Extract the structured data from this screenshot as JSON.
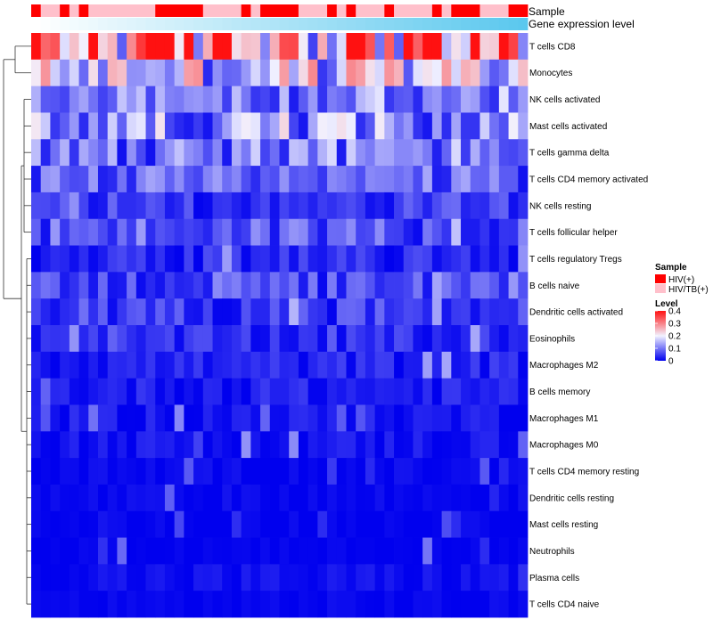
{
  "chart_data": {
    "type": "heatmap",
    "annotations": [
      {
        "name": "Sample",
        "values": [
          "HIV(+)",
          "HIV/TB(+)",
          "HIV/TB(+)",
          "HIV(+)",
          "HIV/TB(+)",
          "HIV(+)",
          "HIV/TB(+)",
          "HIV/TB(+)",
          "HIV/TB(+)",
          "HIV/TB(+)",
          "HIV/TB(+)",
          "HIV/TB(+)",
          "HIV/TB(+)",
          "HIV(+)",
          "HIV(+)",
          "HIV(+)",
          "HIV(+)",
          "HIV(+)",
          "HIV/TB(+)",
          "HIV/TB(+)",
          "HIV/TB(+)",
          "HIV/TB(+)",
          "HIV(+)",
          "HIV/TB(+)",
          "HIV(+)",
          "HIV(+)",
          "HIV(+)",
          "HIV(+)",
          "HIV/TB(+)",
          "HIV/TB(+)",
          "HIV/TB(+)",
          "HIV(+)",
          "HIV/TB(+)",
          "HIV(+)",
          "HIV/TB(+)",
          "HIV/TB(+)",
          "HIV/TB(+)",
          "HIV(+)",
          "HIV/TB(+)",
          "HIV/TB(+)",
          "HIV/TB(+)",
          "HIV/TB(+)",
          "HIV(+)",
          "HIV/TB(+)",
          "HIV(+)",
          "HIV(+)",
          "HIV(+)",
          "HIV/TB(+)",
          "HIV/TB(+)",
          "HIV/TB(+)",
          "HIV(+)",
          "HIV(+)"
        ]
      },
      {
        "name": "Gene expression level",
        "gradient": [
          "#ffffff",
          "#5bc8ee"
        ]
      }
    ],
    "rows": [
      "T cells CD8",
      "Monocytes",
      "NK cells activated",
      "Mast cells activated",
      "T cells gamma delta",
      "T cells CD4 memory activated",
      "NK cells resting",
      "T cells follicular helper",
      "T cells regulatory  Tregs",
      "B cells naive",
      "Dendritic cells activated",
      "Eosinophils",
      "Macrophages M2",
      "B cells memory",
      "Macrophages M1",
      "Macrophages M0",
      "T cells CD4 memory resting",
      "Dendritic cells resting",
      "Mast cells resting",
      "Neutrophils",
      "Plasma cells",
      "T cells CD4 naive"
    ],
    "n_columns": 52,
    "row_means": [
      0.33,
      0.19,
      0.1,
      0.13,
      0.11,
      0.08,
      0.05,
      0.08,
      0.035,
      0.06,
      0.05,
      0.035,
      0.03,
      0.025,
      0.02,
      0.018,
      0.006,
      0.006,
      0.003,
      0.001,
      0.012,
      0.004
    ],
    "color_scale": {
      "min": 0,
      "max": 0.45,
      "colors": [
        "#0000ee",
        "#f2f2ff",
        "#ff1111"
      ]
    },
    "dendrogram": "rows",
    "legends": {
      "sample": {
        "title": "Sample",
        "items": [
          {
            "label": "HIV(+)",
            "color": "#ff0000"
          },
          {
            "label": "HIV/TB(+)",
            "color": "#ffc0cb"
          }
        ]
      },
      "level": {
        "title": "Level",
        "ticks": [
          0.4,
          0.3,
          0.2,
          0.1,
          0
        ]
      }
    }
  }
}
